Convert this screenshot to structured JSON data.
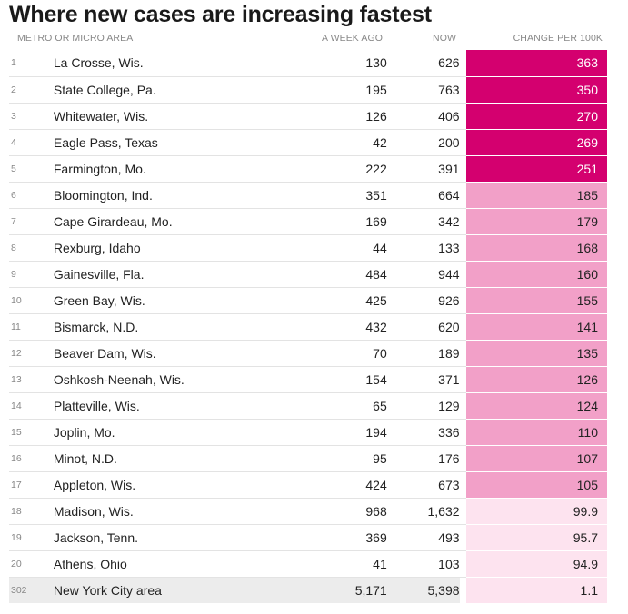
{
  "title": "Where new cases are increasing fastest",
  "columns": {
    "area": "METRO OR MICRO AREA",
    "week_ago": "A WEEK AGO",
    "now": "NOW",
    "change": "CHANGE PER 100K"
  },
  "colors": {
    "high": "#d4006f",
    "mid": "#f2a0c8",
    "low": "#fde3ef"
  },
  "chart_data": {
    "type": "table",
    "title": "Where new cases are increasing fastest",
    "columns": [
      "METRO OR MICRO AREA",
      "A WEEK AGO",
      "NOW",
      "CHANGE PER 100K"
    ],
    "rows": [
      {
        "rank": "1",
        "area": "La Crosse, Wis.",
        "week_ago": "130",
        "now": "626",
        "change": "363",
        "tier": "high"
      },
      {
        "rank": "2",
        "area": "State College, Pa.",
        "week_ago": "195",
        "now": "763",
        "change": "350",
        "tier": "high"
      },
      {
        "rank": "3",
        "area": "Whitewater, Wis.",
        "week_ago": "126",
        "now": "406",
        "change": "270",
        "tier": "high"
      },
      {
        "rank": "4",
        "area": "Eagle Pass, Texas",
        "week_ago": "42",
        "now": "200",
        "change": "269",
        "tier": "high"
      },
      {
        "rank": "5",
        "area": "Farmington, Mo.",
        "week_ago": "222",
        "now": "391",
        "change": "251",
        "tier": "high"
      },
      {
        "rank": "6",
        "area": "Bloomington, Ind.",
        "week_ago": "351",
        "now": "664",
        "change": "185",
        "tier": "mid"
      },
      {
        "rank": "7",
        "area": "Cape Girardeau, Mo.",
        "week_ago": "169",
        "now": "342",
        "change": "179",
        "tier": "mid"
      },
      {
        "rank": "8",
        "area": "Rexburg, Idaho",
        "week_ago": "44",
        "now": "133",
        "change": "168",
        "tier": "mid"
      },
      {
        "rank": "9",
        "area": "Gainesville, Fla.",
        "week_ago": "484",
        "now": "944",
        "change": "160",
        "tier": "mid"
      },
      {
        "rank": "10",
        "area": "Green Bay, Wis.",
        "week_ago": "425",
        "now": "926",
        "change": "155",
        "tier": "mid"
      },
      {
        "rank": "11",
        "area": "Bismarck, N.D.",
        "week_ago": "432",
        "now": "620",
        "change": "141",
        "tier": "mid"
      },
      {
        "rank": "12",
        "area": "Beaver Dam, Wis.",
        "week_ago": "70",
        "now": "189",
        "change": "135",
        "tier": "mid"
      },
      {
        "rank": "13",
        "area": "Oshkosh-Neenah, Wis.",
        "week_ago": "154",
        "now": "371",
        "change": "126",
        "tier": "mid"
      },
      {
        "rank": "14",
        "area": "Platteville, Wis.",
        "week_ago": "65",
        "now": "129",
        "change": "124",
        "tier": "mid"
      },
      {
        "rank": "15",
        "area": "Joplin, Mo.",
        "week_ago": "194",
        "now": "336",
        "change": "110",
        "tier": "mid"
      },
      {
        "rank": "16",
        "area": "Minot, N.D.",
        "week_ago": "95",
        "now": "176",
        "change": "107",
        "tier": "mid"
      },
      {
        "rank": "17",
        "area": "Appleton, Wis.",
        "week_ago": "424",
        "now": "673",
        "change": "105",
        "tier": "mid"
      },
      {
        "rank": "18",
        "area": "Madison, Wis.",
        "week_ago": "968",
        "now": "1,632",
        "change": "99.9",
        "tier": "low"
      },
      {
        "rank": "19",
        "area": "Jackson, Tenn.",
        "week_ago": "369",
        "now": "493",
        "change": "95.7",
        "tier": "low"
      },
      {
        "rank": "20",
        "area": "Athens, Ohio",
        "week_ago": "41",
        "now": "103",
        "change": "94.9",
        "tier": "low"
      },
      {
        "rank": "302",
        "area": "New York City area",
        "week_ago": "5,171",
        "now": "5,398",
        "change": "1.1",
        "tier": "low",
        "highlight": true
      }
    ]
  }
}
